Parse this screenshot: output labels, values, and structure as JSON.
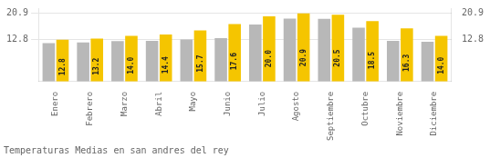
{
  "chart_data": {
    "type": "bar",
    "title": "Temperaturas Medias en san andres del rey",
    "categories": [
      "Enero",
      "Febrero",
      "Marzo",
      "Abril",
      "Mayo",
      "Junio",
      "Julio",
      "Agosto",
      "Septiembre",
      "Octubre",
      "Noviembre",
      "Diciembre"
    ],
    "series": [
      {
        "color": "#B8B8B8",
        "values": [
          11.8,
          12.0,
          12.4,
          12.5,
          12.9,
          13.3,
          17.5,
          19.3,
          19.2,
          16.5,
          12.5,
          12.2
        ]
      },
      {
        "color": "#F5C500",
        "values": [
          12.8,
          13.2,
          14.0,
          14.4,
          15.7,
          17.6,
          20.0,
          20.9,
          20.5,
          18.5,
          16.3,
          14.0
        ],
        "value_labels": [
          "12.8",
          "13.2",
          "14.0",
          "14.4",
          "15.7",
          "17.6",
          "20.0",
          "20.9",
          "20.5",
          "18.5",
          "16.3",
          "14.0"
        ],
        "data_labels": true
      }
    ],
    "ylim": [
      0,
      22.5
    ],
    "yticks": [
      12.8,
      20.9
    ],
    "y2lim": [
      0,
      22.5
    ],
    "y2ticks": [
      12.8,
      20.9
    ],
    "grid": true
  }
}
